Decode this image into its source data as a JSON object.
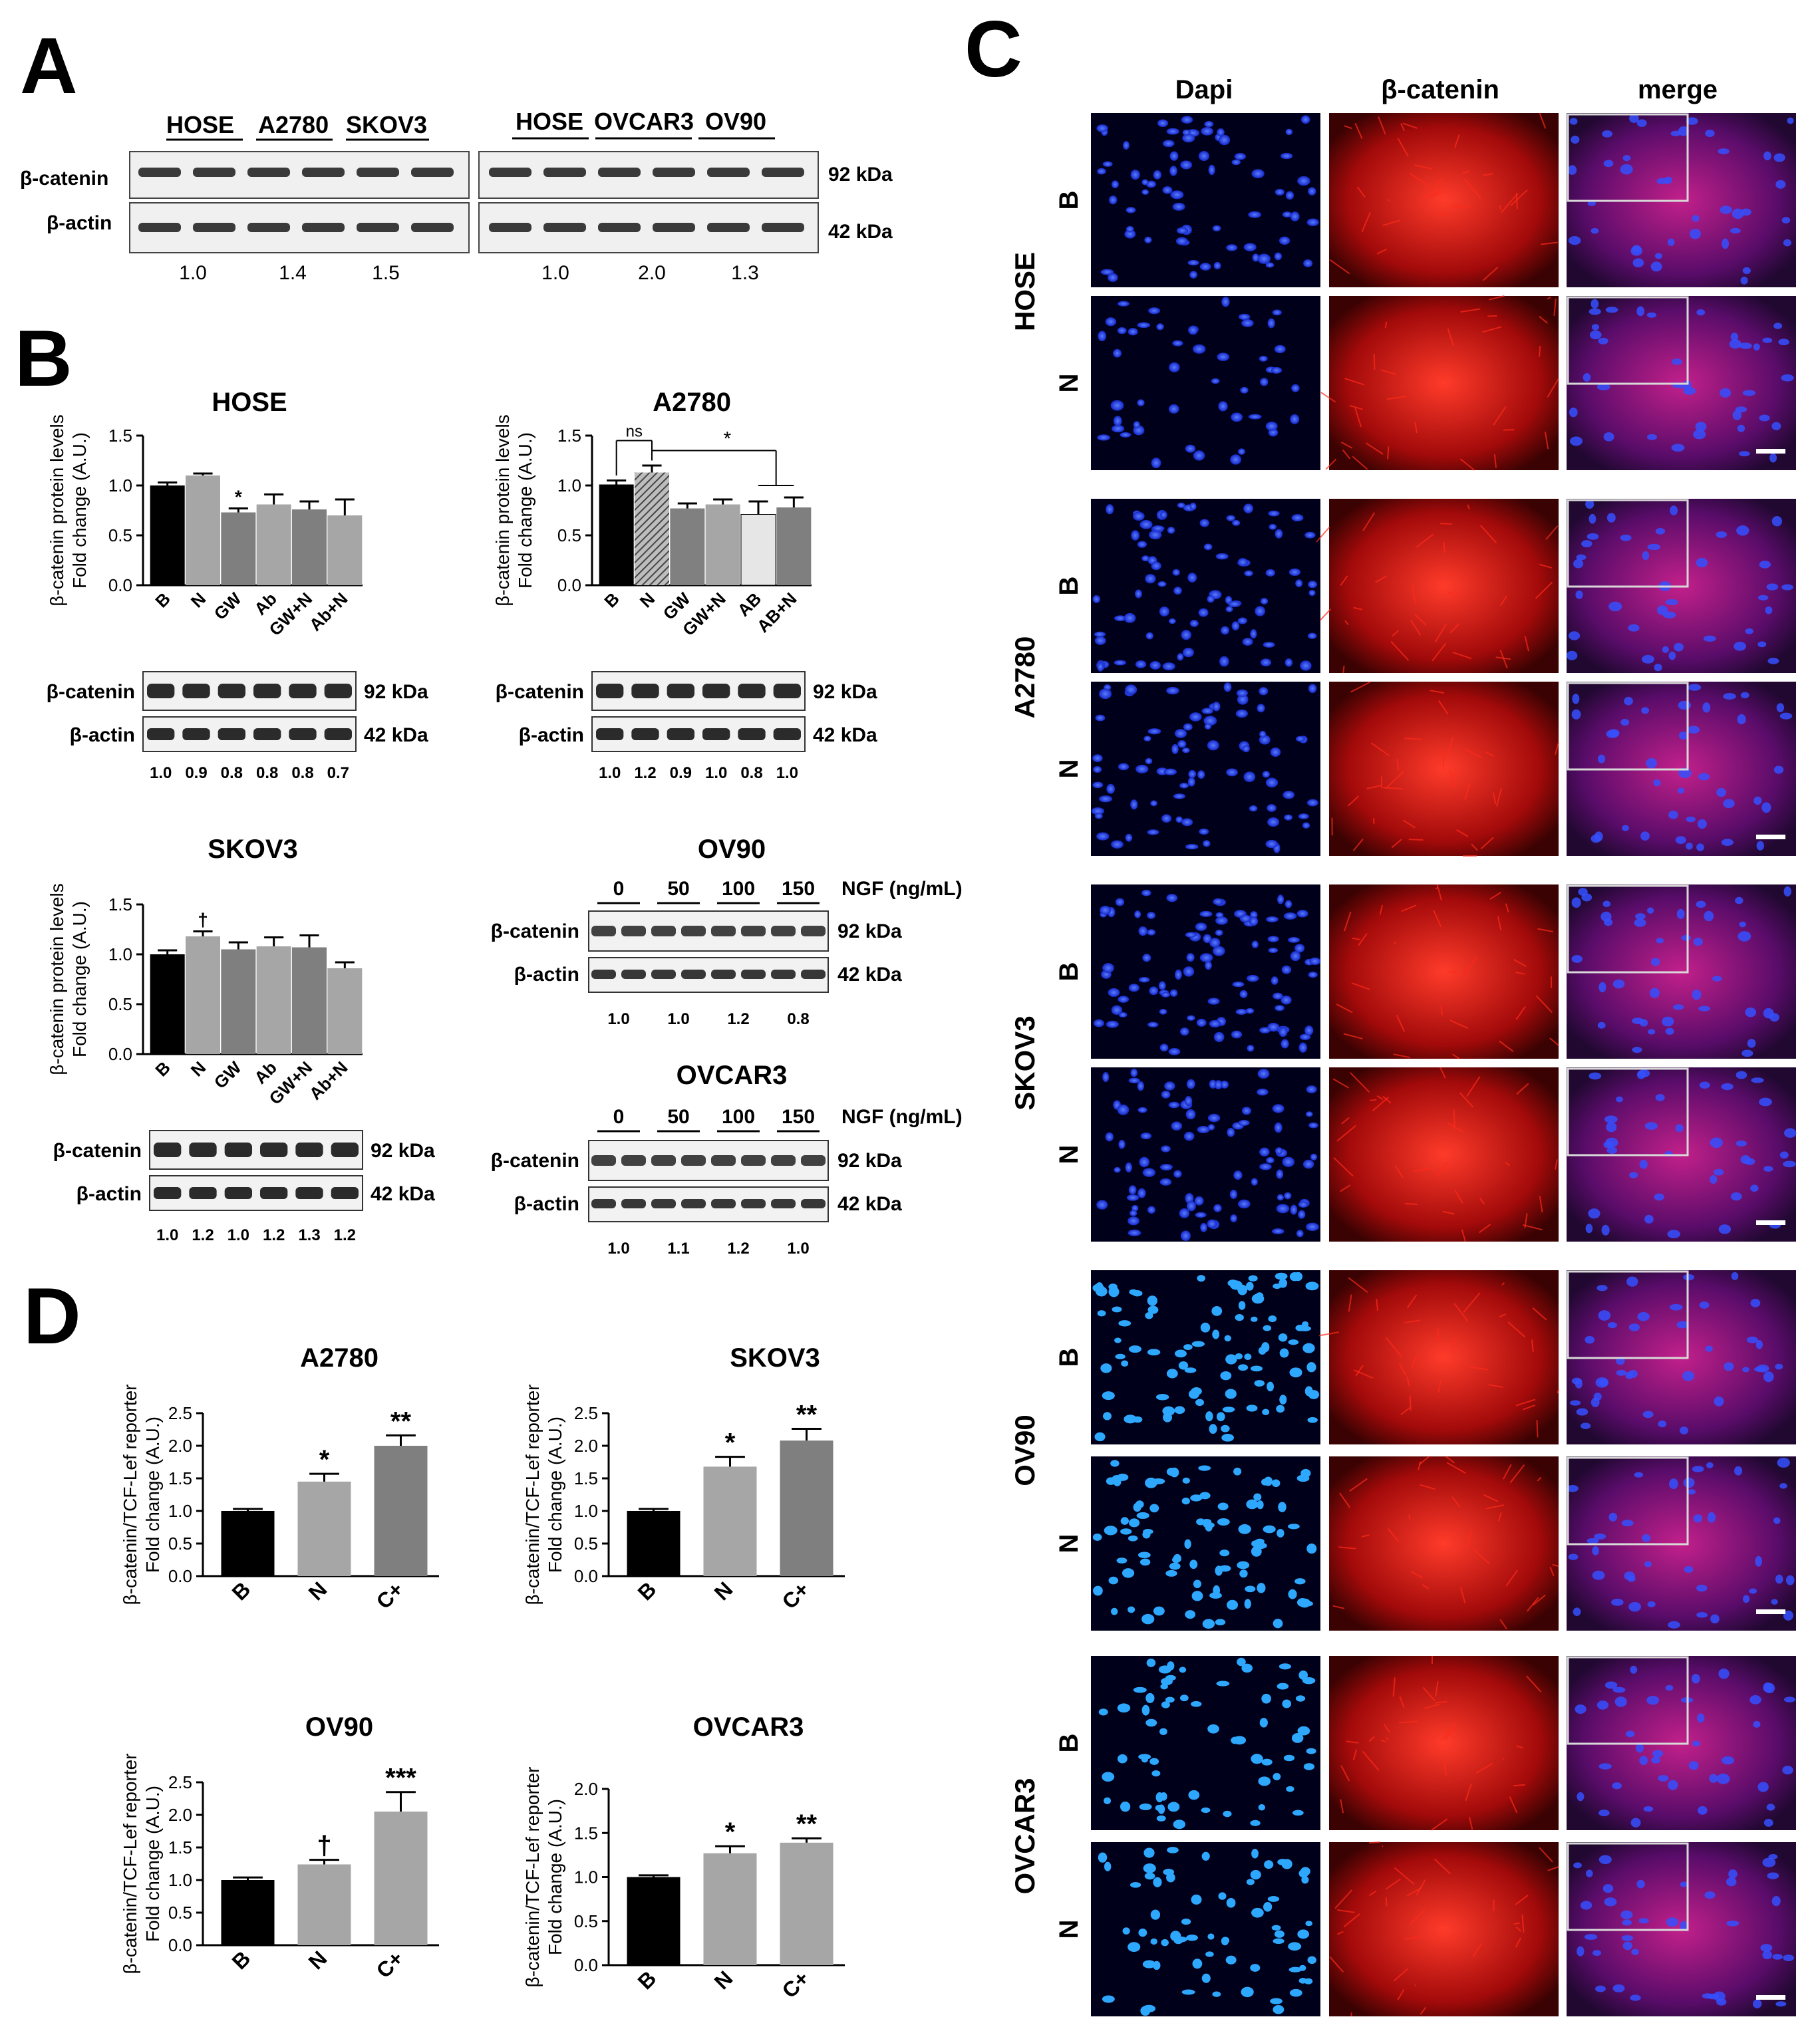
{
  "panels": {
    "A": "A",
    "B": "B",
    "C": "C",
    "D": "D"
  },
  "colors": {
    "black_bar": "#000000",
    "light_gray_bar": "#a6a6a6",
    "mid_gray_bar": "#808080",
    "dark_gray_bar": "#7a7a7a",
    "very_light_bar": "#e6e6e6",
    "hatched_bar": "#777777",
    "dapi": "#1a3cff",
    "catenin": "#e01010",
    "merge_bg": "#3a1060"
  },
  "panelA": {
    "left": {
      "groups": [
        "HOSE",
        "A2780",
        "SKOV3"
      ],
      "rows": [
        "β-catenin",
        "β-actin"
      ],
      "ratios": [
        "1.0",
        "1.4",
        "1.5"
      ]
    },
    "right": {
      "groups": [
        "HOSE",
        "OVCAR3",
        "OV90"
      ],
      "ratios": [
        "1.0",
        "2.0",
        "1.3"
      ],
      "kda": [
        "92 kDa",
        "42 kDa"
      ]
    }
  },
  "panelB": {
    "ylabel_line1": "β-catenin protein levels",
    "ylabel_line2": "Fold change (A.U.)",
    "blot_rows": [
      "β-catenin",
      "β-actin"
    ],
    "kda": [
      "92 kDa",
      "42 kDa"
    ],
    "ngf_label": "NGF (ng/mL)"
  },
  "chart_data": [
    {
      "panel": "B",
      "title": "HOSE",
      "type": "bar",
      "categories": [
        "B",
        "N",
        "GW",
        "Ab",
        "GW+N",
        "Ab+N"
      ],
      "values": [
        1.0,
        1.1,
        0.73,
        0.81,
        0.76,
        0.7
      ],
      "errors": [
        0.03,
        0.02,
        0.04,
        0.1,
        0.08,
        0.16
      ],
      "bar_colors": [
        "#000000",
        "#a6a6a6",
        "#7f7f7f",
        "#a6a6a6",
        "#7f7f7f",
        "#a6a6a6"
      ],
      "annotations": [
        "",
        "",
        "*",
        "",
        "",
        ""
      ],
      "yticks": [
        "0.0",
        "0.5",
        "1.0",
        "1.5"
      ],
      "ylim": [
        0,
        1.5
      ],
      "blot_ratios": [
        "1.0",
        "0.9",
        "0.8",
        "0.8",
        "0.8",
        "0.7"
      ]
    },
    {
      "panel": "B",
      "title": "A2780",
      "type": "bar",
      "categories": [
        "B",
        "N",
        "GW",
        "GW+N",
        "AB",
        "AB+N"
      ],
      "values": [
        1.01,
        1.13,
        0.77,
        0.81,
        0.71,
        0.78
      ],
      "errors": [
        0.04,
        0.07,
        0.05,
        0.05,
        0.13,
        0.1
      ],
      "bar_colors": [
        "#000000",
        "#777777",
        "#808080",
        "#a6a6a6",
        "#e6e6e6",
        "#7f7f7f"
      ],
      "annotations": [
        "",
        "",
        "",
        "",
        "",
        ""
      ],
      "brackets": [
        "ns",
        "*"
      ],
      "yticks": [
        "0.0",
        "0.5",
        "1.0",
        "1.5"
      ],
      "ylim": [
        0,
        1.5
      ],
      "blot_ratios": [
        "1.0",
        "1.2",
        "0.9",
        "1.0",
        "0.8",
        "1.0"
      ]
    },
    {
      "panel": "B",
      "title": "SKOV3",
      "type": "bar",
      "categories": [
        "B",
        "N",
        "GW",
        "Ab",
        "GW+N",
        "Ab+N"
      ],
      "values": [
        1.0,
        1.18,
        1.05,
        1.08,
        1.07,
        0.86
      ],
      "errors": [
        0.04,
        0.05,
        0.07,
        0.09,
        0.12,
        0.06
      ],
      "bar_colors": [
        "#000000",
        "#a6a6a6",
        "#7f7f7f",
        "#a6a6a6",
        "#7f7f7f",
        "#a6a6a6"
      ],
      "annotations": [
        "",
        "†",
        "",
        "",
        "",
        ""
      ],
      "yticks": [
        "0.0",
        "0.5",
        "1.0",
        "1.5"
      ],
      "ylim": [
        0,
        1.5
      ],
      "blot_ratios": [
        "1.0",
        "1.2",
        "1.0",
        "1.2",
        "1.3",
        "1.2"
      ]
    },
    {
      "panel": "D",
      "title": "A2780",
      "type": "bar",
      "categories": [
        "B",
        "N",
        "C+"
      ],
      "values": [
        1.0,
        1.45,
        2.0
      ],
      "errors": [
        0.03,
        0.12,
        0.16
      ],
      "bar_colors": [
        "#000000",
        "#a6a6a6",
        "#7f7f7f"
      ],
      "annotations": [
        "",
        "*",
        "**"
      ],
      "yticks": [
        "0.0",
        "0.5",
        "1.0",
        "1.5",
        "2.0",
        "2.5"
      ],
      "ylim": [
        0,
        2.5
      ]
    },
    {
      "panel": "D",
      "title": "SKOV3",
      "type": "bar",
      "categories": [
        "B",
        "N",
        "C+"
      ],
      "values": [
        1.0,
        1.68,
        2.08
      ],
      "errors": [
        0.03,
        0.15,
        0.18
      ],
      "bar_colors": [
        "#000000",
        "#a6a6a6",
        "#7f7f7f"
      ],
      "annotations": [
        "",
        "*",
        "**"
      ],
      "yticks": [
        "0.0",
        "0.5",
        "1.0",
        "1.5",
        "2.0",
        "2.5"
      ],
      "ylim": [
        0,
        2.5
      ]
    },
    {
      "panel": "D",
      "title": "OV90",
      "type": "bar",
      "categories": [
        "B",
        "N",
        "C+"
      ],
      "values": [
        1.0,
        1.24,
        2.05
      ],
      "errors": [
        0.04,
        0.07,
        0.3
      ],
      "bar_colors": [
        "#000000",
        "#a6a6a6",
        "#a6a6a6"
      ],
      "annotations": [
        "",
        "†",
        "***"
      ],
      "yticks": [
        "0.0",
        "0.5",
        "1.0",
        "1.5",
        "2.0",
        "2.5"
      ],
      "ylim": [
        0,
        2.5
      ]
    },
    {
      "panel": "D",
      "title": "OVCAR3",
      "type": "bar",
      "categories": [
        "B",
        "N",
        "C+"
      ],
      "values": [
        1.0,
        1.27,
        1.39
      ],
      "errors": [
        0.02,
        0.08,
        0.05
      ],
      "bar_colors": [
        "#000000",
        "#a6a6a6",
        "#a6a6a6"
      ],
      "annotations": [
        "",
        "*",
        "**"
      ],
      "yticks": [
        "0.0",
        "0.5",
        "1.0",
        "1.5",
        "2.0"
      ],
      "ylim": [
        0,
        2.0
      ]
    }
  ],
  "ngf_blots": [
    {
      "title": "OV90",
      "doses": [
        "0",
        "50",
        "100",
        "150"
      ],
      "ratios": [
        "1.0",
        "1.0",
        "1.2",
        "0.8"
      ]
    },
    {
      "title": "OVCAR3",
      "doses": [
        "0",
        "50",
        "100",
        "150"
      ],
      "ratios": [
        "1.0",
        "1.1",
        "1.2",
        "1.0"
      ]
    }
  ],
  "panelD": {
    "ylabel_line1": "β-catenin/TCF-Lef reporter",
    "ylabel_line2": "Fold change (A.U.)"
  },
  "panelC": {
    "columns": [
      "Dapi",
      "β-catenin",
      "merge"
    ],
    "cell_lines": [
      "HOSE",
      "A2780",
      "SKOV3",
      "OV90",
      "OVCAR3"
    ],
    "row_labels": [
      "B",
      "N"
    ]
  }
}
